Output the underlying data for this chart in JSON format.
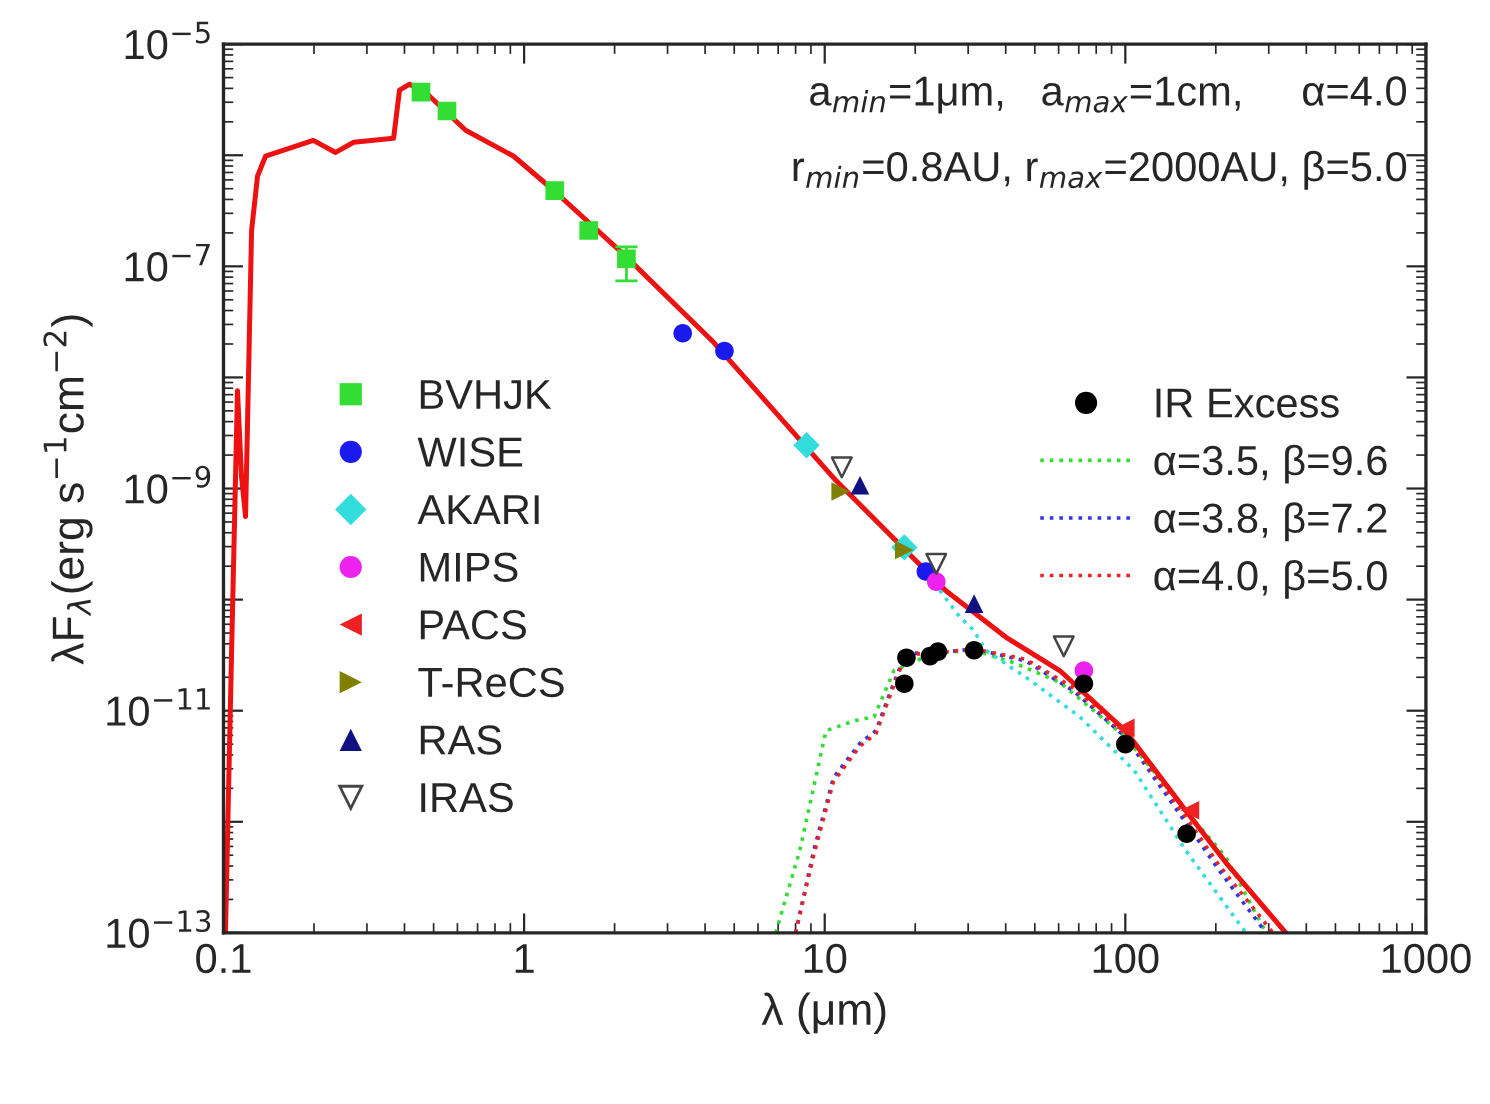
{
  "chart_data": {
    "type": "scatter",
    "xlabel": "λ (μm)",
    "ylabel": "λF$_{λ}$(erg s$^{−1}$cm$^{−2}$)",
    "log": "xy",
    "xlim": [
      0.1,
      1000
    ],
    "ylim": [
      1e-13,
      1e-05
    ],
    "xticks": [
      0.1,
      1,
      10,
      100,
      1000
    ],
    "yticks": [
      {
        "value": 1e-13,
        "label": "10$^{−13}$"
      },
      {
        "value": 1e-12,
        "label": null
      },
      {
        "value": 1e-11,
        "label": "10$^{−11}$"
      },
      {
        "value": 1e-10,
        "label": null
      },
      {
        "value": 1e-09,
        "label": "10$^{−9}$"
      },
      {
        "value": 1e-08,
        "label": null
      },
      {
        "value": 1e-07,
        "label": "10$^{−7}$"
      },
      {
        "value": 1e-06,
        "label": null
      },
      {
        "value": 1e-05,
        "label": "10$^{−5}$"
      }
    ],
    "grid": false,
    "legend": "center left",
    "annotations": [
      "a$_{min}$=1μm,   a$_{max}$=1cm,     α=4.0",
      "r$_{min}$=0.8AU, r$_{max}$=2000AU, β=5.0"
    ],
    "series": [
      {
        "name": "BVHJK",
        "marker": "square",
        "color": "#33dd33",
        "x": [
          0.454,
          0.554,
          1.265,
          1.64,
          2.19
        ],
        "values": [
          3.7e-06,
          2.5e-06,
          4.8e-07,
          2.1e-07,
          1.17e-07
        ],
        "errors": [
          null,
          null,
          null,
          null,
          [
            7.4e-08,
            1.5e-07
          ]
        ]
      },
      {
        "name": "WISE",
        "marker": "circle",
        "color": "#1a1aee",
        "x": [
          3.37,
          4.64,
          21.7
        ],
        "values": [
          2.5e-08,
          1.73e-08,
          1.79e-10
        ]
      },
      {
        "name": "AKARI",
        "marker": "diamond",
        "color": "#33dddd",
        "x": [
          8.7,
          18.4
        ],
        "values": [
          2.45e-09,
          2.95e-10
        ]
      },
      {
        "name": "MIPS",
        "marker": "circle",
        "color": "#ee22ee",
        "x": [
          23.5,
          72.8
        ],
        "values": [
          1.45e-10,
          2.3e-11
        ]
      },
      {
        "name": "PACS",
        "marker": "triangle-left",
        "color": "#ee2222",
        "x": [
          100,
          164
        ],
        "values": [
          7e-12,
          1.27e-12
        ]
      },
      {
        "name": "T-ReCS",
        "marker": "triangle-right",
        "color": "#808000",
        "x": [
          11.3,
          18.4
        ],
        "values": [
          9.4e-10,
          2.8e-10
        ]
      },
      {
        "name": "RAS",
        "marker": "triangle",
        "color": "#101080",
        "x": [
          13.1,
          31.4
        ],
        "values": [
          1.07e-09,
          9.2e-11
        ]
      },
      {
        "name": "IRAS",
        "marker": "triangle-down-open",
        "color": "#444444",
        "x": [
          11.4,
          23.5,
          62.4
        ],
        "values": [
          1.55e-09,
          2.1e-10,
          3.8e-11
        ]
      },
      {
        "name": "IR Excess",
        "marker": "circle",
        "color": "#000000",
        "x": [
          18.7,
          18.4,
          22.4,
          23.8,
          31.4,
          72.8,
          100,
          160
        ],
        "values": [
          3e-11,
          1.75e-11,
          3.1e-11,
          3.4e-11,
          3.5e-11,
          1.75e-11,
          5e-12,
          7.8e-13
        ]
      },
      {
        "name": "α=3.5, β=9.6",
        "type": "line",
        "line_style": "dotted",
        "color": "#33dd33",
        "x": [
          6.87,
          8.26,
          10.1,
          12.5,
          14.6,
          17.0,
          23.1,
          31.3,
          42.6,
          60.5,
          100,
          159,
          216,
          294
        ],
        "values": [
          1e-13,
          5.5e-13,
          6.6e-12,
          8.1e-12,
          8.8e-12,
          2.3e-11,
          3.3e-11,
          3.5e-11,
          2.7e-11,
          1.8e-11,
          5.8e-12,
          1.26e-12,
          4.8e-13,
          1e-13
        ]
      },
      {
        "name": "α=3.8, β=7.2",
        "type": "line",
        "line_style": "dotted",
        "color": "#3333ee",
        "x": [
          8.0,
          9.19,
          10.7,
          13.1,
          14.8,
          17.0,
          18.6,
          23.1,
          31.3,
          46.7,
          67.4,
          100,
          159,
          206,
          294
        ],
        "values": [
          1e-13,
          5.5e-13,
          2.5e-12,
          5.1e-12,
          6.6e-12,
          1.8e-11,
          3.3e-11,
          3.3e-11,
          3.6e-11,
          2.8e-11,
          1.5e-11,
          5.8e-12,
          9.8e-13,
          3.6e-13,
          1e-13
        ]
      },
      {
        "name": "α=4.0, β=5.0",
        "type": "line",
        "line_style": "dotted",
        "color": "#ee2222",
        "x": [
          8.0,
          9.19,
          10.7,
          13.1,
          14.8,
          17.0,
          18.6,
          23.1,
          31.3,
          46.7,
          67.4,
          100,
          159,
          206,
          310
        ],
        "values": [
          1e-13,
          5e-13,
          2.3e-12,
          4.8e-12,
          6.2e-12,
          1.7e-11,
          3.2e-11,
          3.3e-11,
          3.6e-11,
          2.9e-11,
          1.6e-11,
          6.2e-12,
          1.1e-12,
          4e-13,
          1e-13
        ]
      },
      {
        "type": "line",
        "line_style": "dotted",
        "color": "#33dddd",
        "x": [
          23.1,
          28.1,
          31.3,
          34.3,
          46.7,
          70.6,
          107,
          159,
          252
        ],
        "values": [
          1.42e-10,
          7e-11,
          5.3e-11,
          3.5e-11,
          2e-11,
          8.8e-12,
          2.9e-12,
          5.5e-13,
          1e-13
        ]
      },
      {
        "type": "line",
        "line_style": "solid",
        "color": "#ee1111",
        "x": [
          0.1015,
          0.1063,
          0.1113,
          0.1148,
          0.1184,
          0.124,
          0.1298,
          0.138,
          0.199,
          0.236,
          0.271,
          0.368,
          0.385,
          0.416,
          0.485,
          0.639,
          0.923,
          1.253,
          2.18,
          4.27,
          10.9,
          25.3,
          40.0,
          60.5,
          100,
          159,
          216,
          342
        ],
        "values": [
          1e-13,
          3.06e-11,
          7.6e-09,
          1.28e-09,
          5.6e-10,
          2.1e-07,
          6.5e-07,
          9.8e-07,
          1.36e-06,
          1.06e-06,
          1.31e-06,
          1.42e-06,
          3.85e-06,
          4.36e-06,
          3.4e-06,
          1.68e-06,
          9.8e-07,
          4.84e-07,
          1.23e-07,
          2.07e-08,
          1.18e-09,
          1.2e-10,
          4.6e-11,
          2.3e-11,
          6.6e-12,
          1.26e-12,
          4.3e-13,
          1e-13
        ]
      }
    ]
  }
}
